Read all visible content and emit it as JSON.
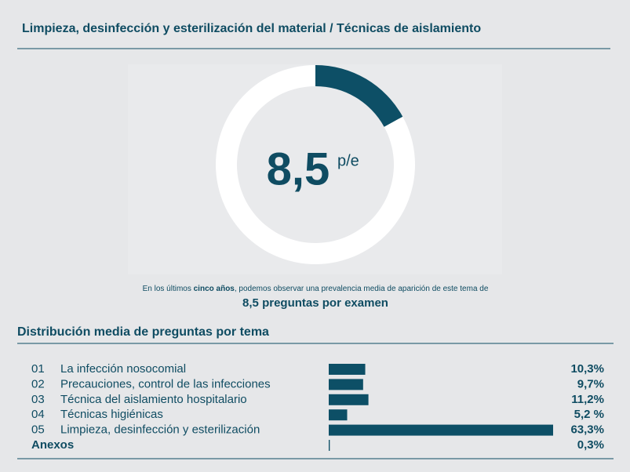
{
  "header": {
    "title": "Limpieza, desinfección y esterilización del material / Técnicas de aislamiento"
  },
  "summary": {
    "text_before": "En los últimos ",
    "text_bold": "cinco años",
    "text_after": ", podemos observar una prevalencia media de aparición de este tema de",
    "highlight": "8,5 preguntas por examen"
  },
  "chart_data": [
    {
      "type": "donut",
      "center_value": "8,5",
      "center_unit": "p/e",
      "values": [
        17,
        83
      ],
      "colors": [
        "#0d4f66",
        "#ffffff"
      ]
    },
    {
      "type": "hbar",
      "title": "Distribución media de preguntas por tema",
      "codes": [
        "01",
        "02",
        "03",
        "04",
        "05",
        "Anexos"
      ],
      "categories": [
        "La infección nosocomial",
        "Precauciones, control de las infecciones",
        "Técnica del aislamiento hospitalario",
        "Técnicas higiénicas",
        "Limpieza, desinfección y esterilización",
        null
      ],
      "values": [
        10.3,
        9.7,
        11.2,
        5.2,
        63.3,
        0.3
      ],
      "value_labels": [
        "10,3%",
        "9,7%",
        "11,2%",
        "5,2 %",
        "63,3%",
        "0,3%"
      ],
      "color": "#0d4f66"
    }
  ]
}
